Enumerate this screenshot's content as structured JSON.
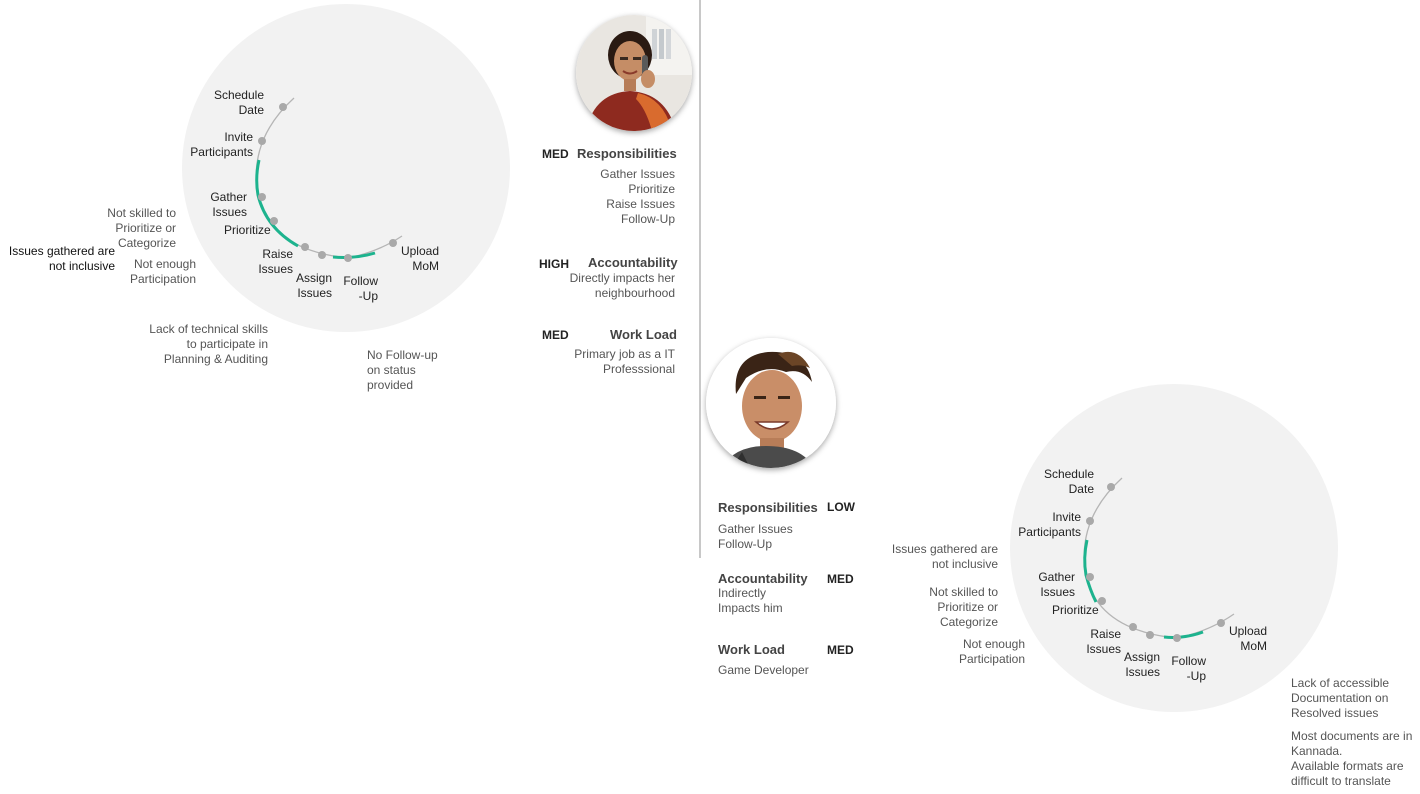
{
  "colors": {
    "circle_fill": "#f2f2f2",
    "track": "#b5b5b5",
    "highlight": "#1db38e",
    "dot": "#a9a9a9",
    "divider": "#c8c8c8"
  },
  "journey1": {
    "steps": {
      "schedule_date": "Schedule\nDate",
      "invite_participants": "Invite\nParticipants",
      "gather_issues": "Gather\nIssues",
      "prioritize": "Prioritize",
      "raise_issues": "Raise\nIssues",
      "assign_issues": "Assign\nIssues",
      "follow_up": "Follow\n-Up",
      "upload_mom": "Upload\nMoM"
    },
    "pain_points": {
      "not_skilled": "Not skilled to\nPrioritize or\nCategorize",
      "not_inclusive": "Issues gathered are\nnot inclusive",
      "not_enough": "Not enough\nParticipation",
      "lack_skills": "Lack of technical skills\nto participate in\nPlanning & Auditing",
      "no_followup": "No Follow-up\non status\nprovided"
    }
  },
  "persona1": {
    "avatar_icon": "woman-on-phone-photo",
    "responsibilities": {
      "level": "MED",
      "heading": "Responsibilities",
      "detail": "Gather Issues\nPrioritize\nRaise Issues\nFollow-Up"
    },
    "accountability": {
      "level": "HIGH",
      "heading": "Accountability",
      "detail": "Directly impacts her\nneighbourhood"
    },
    "workload": {
      "level": "MED",
      "heading": "Work Load",
      "detail": "Primary job as a IT\nProfesssional"
    }
  },
  "persona2": {
    "avatar_icon": "smiling-man-photo",
    "responsibilities": {
      "level": "LOW",
      "heading": "Responsibilities",
      "detail": "Gather Issues\nFollow-Up"
    },
    "accountability": {
      "level": "MED",
      "heading": "Accountability",
      "detail": "Indirectly\nImpacts him"
    },
    "workload": {
      "level": "MED",
      "heading": "Work Load",
      "detail": "Game Developer"
    }
  },
  "journey2": {
    "steps": {
      "schedule_date": "Schedule\nDate",
      "invite_participants": "Invite\nParticipants",
      "gather_issues": "Gather\nIssues",
      "prioritize": "Prioritize",
      "raise_issues": "Raise\nIssues",
      "assign_issues": "Assign\nIssues",
      "follow_up": "Follow\n-Up",
      "upload_mom": "Upload\nMoM"
    },
    "pain_points": {
      "not_inclusive": "Issues gathered are\nnot inclusive",
      "not_skilled": "Not skilled to\nPrioritize or\nCategorize",
      "not_enough": "Not enough\nParticipation",
      "lack_docs": "Lack of accessible\nDocumentation on\nResolved issues",
      "kannada": "Most documents are in\nKannada.\nAvailable formats are\ndifficult to translate"
    }
  }
}
